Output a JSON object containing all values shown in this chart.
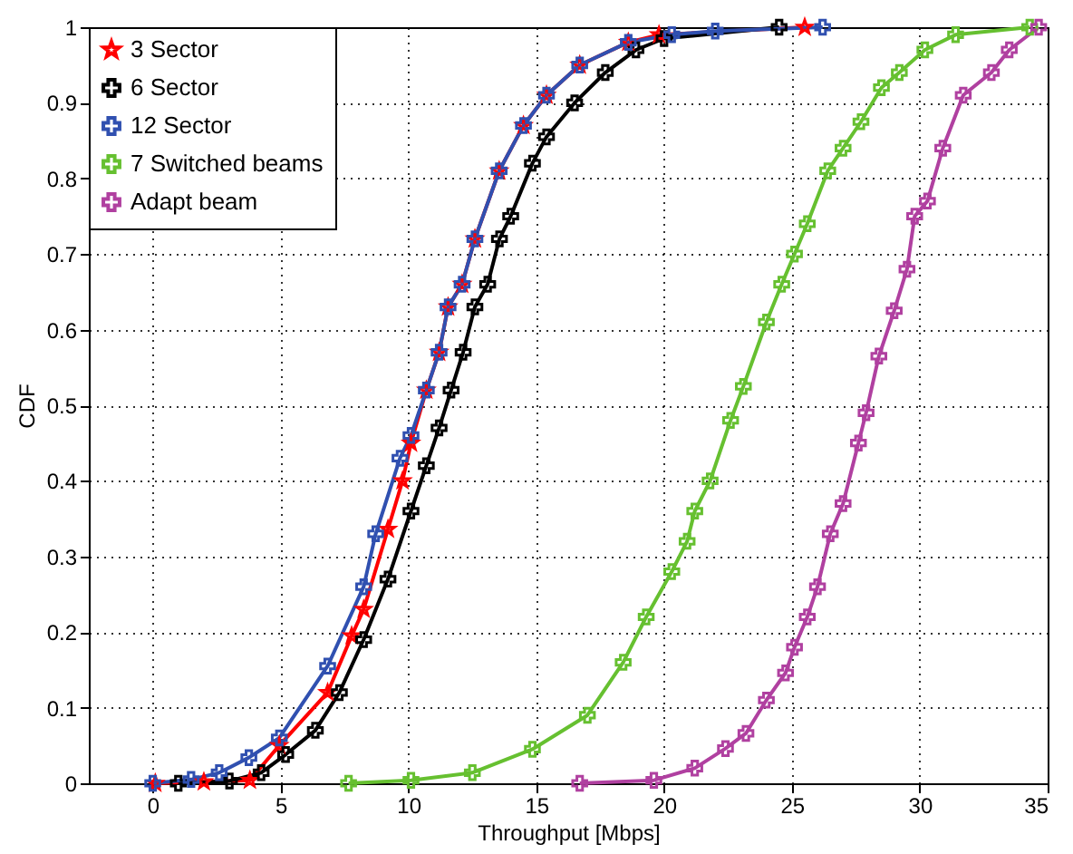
{
  "chart_data": {
    "type": "line",
    "xlabel": "Throughput [Mbps]",
    "ylabel": "CDF",
    "xlim": [
      -2.5,
      35
    ],
    "xticks": [
      0,
      5,
      10,
      15,
      20,
      25,
      30,
      35
    ],
    "ylim": [
      0,
      1
    ],
    "yticks": [
      0,
      0.1,
      0.2,
      0.3,
      0.4,
      0.5,
      0.6,
      0.7,
      0.8,
      0.9,
      1
    ],
    "grid": true,
    "legend": "top left",
    "line_style": "solid",
    "series": [
      {
        "name": "3 Sector",
        "color": "#ff0000",
        "marker": "star",
        "x": [
          0.1,
          2.0,
          3.8,
          4.95,
          6.84,
          7.78,
          8.25,
          9.2,
          9.77,
          10.1,
          10.7,
          11.2,
          11.55,
          12.1,
          12.6,
          13.55,
          14.5,
          15.4,
          16.7,
          18.6,
          19.8,
          25.5
        ],
        "values": [
          0,
          0.002,
          0.004,
          0.05,
          0.12,
          0.195,
          0.23,
          0.336,
          0.4,
          0.45,
          0.52,
          0.57,
          0.63,
          0.66,
          0.72,
          0.81,
          0.87,
          0.91,
          0.95,
          0.98,
          0.99,
          1
        ]
      },
      {
        "name": "6 Sector",
        "color": "#000000",
        "marker": "cross",
        "x": [
          1.0,
          3.0,
          4.24,
          5.2,
          6.36,
          7.3,
          8.25,
          9.2,
          10.1,
          10.7,
          11.2,
          11.67,
          12.14,
          12.6,
          13.1,
          13.56,
          14.0,
          14.85,
          15.4,
          16.5,
          17.7,
          18.9,
          20.0,
          24.5
        ],
        "values": [
          0,
          0.003,
          0.014,
          0.038,
          0.07,
          0.12,
          0.19,
          0.27,
          0.36,
          0.42,
          0.47,
          0.52,
          0.57,
          0.63,
          0.66,
          0.72,
          0.75,
          0.82,
          0.855,
          0.9,
          0.94,
          0.97,
          0.985,
          1
        ]
      },
      {
        "name": "12 Sector",
        "color": "#3050b0",
        "marker": "cross",
        "x": [
          0,
          1.5,
          2.6,
          3.76,
          4.95,
          6.84,
          8.25,
          8.72,
          9.67,
          10.1,
          10.7,
          11.2,
          11.55,
          12.1,
          12.6,
          13.55,
          14.5,
          15.4,
          16.7,
          18.6,
          20.3,
          22.0,
          26.2
        ],
        "values": [
          0,
          0.005,
          0.014,
          0.034,
          0.06,
          0.155,
          0.26,
          0.33,
          0.43,
          0.46,
          0.52,
          0.57,
          0.63,
          0.66,
          0.72,
          0.81,
          0.87,
          0.91,
          0.95,
          0.98,
          0.99,
          0.995,
          1
        ]
      },
      {
        "name": "7 Switched beams",
        "color": "#66c030",
        "marker": "cross",
        "x": [
          7.66,
          10.1,
          12.5,
          14.85,
          17.0,
          18.4,
          19.3,
          20.3,
          20.9,
          21.2,
          21.8,
          22.6,
          23.1,
          24.0,
          24.6,
          25.1,
          25.6,
          26.4,
          27.0,
          27.7,
          28.5,
          29.2,
          30.2,
          31.4,
          34.3
        ],
        "values": [
          0,
          0.004,
          0.014,
          0.045,
          0.09,
          0.16,
          0.22,
          0.28,
          0.32,
          0.36,
          0.4,
          0.48,
          0.525,
          0.61,
          0.66,
          0.7,
          0.74,
          0.81,
          0.84,
          0.875,
          0.92,
          0.94,
          0.97,
          0.99,
          1
        ]
      },
      {
        "name": "Adapt beam",
        "color": "#b040a0",
        "marker": "cross",
        "x": [
          16.7,
          19.6,
          21.2,
          22.4,
          23.2,
          24.0,
          24.75,
          25.1,
          25.6,
          26.0,
          26.5,
          27.0,
          27.6,
          27.9,
          28.4,
          29.0,
          29.5,
          29.8,
          30.3,
          30.9,
          31.7,
          32.8,
          33.5,
          34.65
        ],
        "values": [
          0,
          0.004,
          0.02,
          0.046,
          0.066,
          0.11,
          0.146,
          0.18,
          0.22,
          0.26,
          0.33,
          0.37,
          0.45,
          0.49,
          0.565,
          0.625,
          0.68,
          0.75,
          0.77,
          0.84,
          0.91,
          0.94,
          0.97,
          1
        ]
      }
    ]
  }
}
